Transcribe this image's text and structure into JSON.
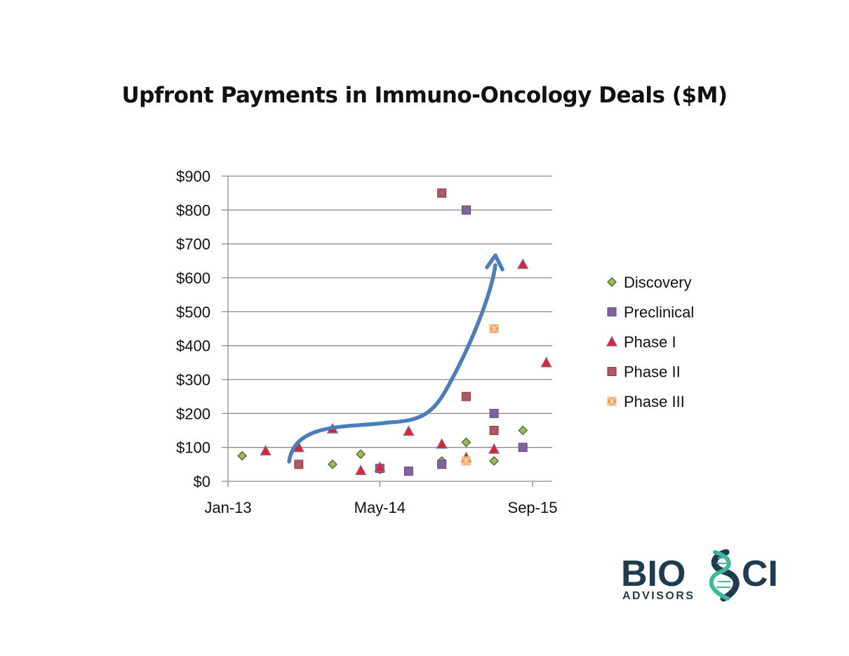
{
  "title": "Upfront Payments in Immuno-Oncology Deals ($M)",
  "chart_data": {
    "type": "scatter",
    "title": "Upfront Payments in Immuno-Oncology Deals ($M)",
    "xlabel": "",
    "ylabel": "",
    "x_tick_labels": [
      "Jan-13",
      "May-14",
      "Sep-15"
    ],
    "x_ticks": [
      "2013-01-01",
      "2014-05-01",
      "2015-09-01"
    ],
    "xlim": [
      "2013-01-01",
      "2015-10-15"
    ],
    "y_tick_labels": [
      "$0",
      "$100",
      "$200",
      "$300",
      "$400",
      "$500",
      "$600",
      "$700",
      "$800",
      "$900"
    ],
    "ylim": [
      0,
      900
    ],
    "grid": "horizontal",
    "legend_position": "right",
    "series": [
      {
        "name": "Discovery",
        "marker": "diamond",
        "color": "#9bbb59",
        "stroke": "#4f6228",
        "points": [
          {
            "x": "2013-02-15",
            "y": 75
          },
          {
            "x": "2013-12-01",
            "y": 50
          },
          {
            "x": "2014-03-01",
            "y": 80
          },
          {
            "x": "2014-05-01",
            "y": 35
          },
          {
            "x": "2014-11-15",
            "y": 60
          },
          {
            "x": "2015-02-01",
            "y": 115
          },
          {
            "x": "2015-05-01",
            "y": 60
          },
          {
            "x": "2015-08-01",
            "y": 150
          }
        ]
      },
      {
        "name": "Preclinical",
        "marker": "square",
        "color": "#8064a2",
        "stroke": "#5f497a",
        "points": [
          {
            "x": "2014-05-01",
            "y": 38
          },
          {
            "x": "2014-08-01",
            "y": 30
          },
          {
            "x": "2014-11-15",
            "y": 50
          },
          {
            "x": "2015-02-01",
            "y": 800
          },
          {
            "x": "2015-05-01",
            "y": 200
          },
          {
            "x": "2015-08-01",
            "y": 100
          }
        ]
      },
      {
        "name": "Phase I",
        "marker": "triangle",
        "color": "#e8202a",
        "stroke": "#8064a2",
        "points": [
          {
            "x": "2013-05-01",
            "y": 90
          },
          {
            "x": "2013-08-15",
            "y": 100
          },
          {
            "x": "2013-12-01",
            "y": 155
          },
          {
            "x": "2014-03-01",
            "y": 32
          },
          {
            "x": "2014-05-01",
            "y": 42
          },
          {
            "x": "2014-08-01",
            "y": 148
          },
          {
            "x": "2014-11-15",
            "y": 110
          },
          {
            "x": "2015-02-01",
            "y": 70
          },
          {
            "x": "2015-05-01",
            "y": 95
          },
          {
            "x": "2015-08-01",
            "y": 640
          },
          {
            "x": "2015-10-15",
            "y": 350
          }
        ]
      },
      {
        "name": "Phase II",
        "marker": "x-square",
        "color": "#c0504d",
        "stroke": "#943634",
        "points": [
          {
            "x": "2013-08-15",
            "y": 50
          },
          {
            "x": "2014-11-15",
            "y": 850
          },
          {
            "x": "2015-02-01",
            "y": 250
          },
          {
            "x": "2015-05-01",
            "y": 150
          }
        ]
      },
      {
        "name": "Phase III",
        "marker": "star-square",
        "color": "#f79646",
        "stroke": "#fac090",
        "points": [
          {
            "x": "2015-02-01",
            "y": 60
          },
          {
            "x": "2015-05-01",
            "y": 450
          }
        ]
      }
    ],
    "annotation": {
      "type": "trend-arrow",
      "color": "#4a7ebb"
    }
  },
  "logo": {
    "wordmark": "BIOSCI",
    "tagline": "ADVISORS",
    "colors": {
      "dark": "#1f3c4f",
      "helix": "#3cb89a"
    }
  }
}
